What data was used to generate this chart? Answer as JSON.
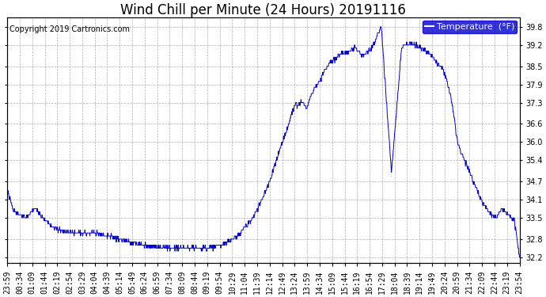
{
  "title": "Wind Chill per Minute (24 Hours) 20191116",
  "copyright": "Copyright 2019 Cartronics.com",
  "legend_label": "Temperature  (°F)",
  "line_color": "#0000cc",
  "background_color": "#ffffff",
  "grid_color": "#999999",
  "ylim": [
    32.0,
    40.1
  ],
  "yticks": [
    32.2,
    32.8,
    33.5,
    34.1,
    34.7,
    35.4,
    36.0,
    36.6,
    37.3,
    37.9,
    38.5,
    39.2,
    39.8
  ],
  "x_labels": [
    "23:59",
    "00:34",
    "01:09",
    "01:44",
    "02:19",
    "02:54",
    "03:29",
    "04:04",
    "04:39",
    "05:14",
    "05:49",
    "06:24",
    "06:59",
    "07:34",
    "08:09",
    "08:44",
    "09:19",
    "09:54",
    "10:29",
    "11:04",
    "11:39",
    "12:14",
    "12:49",
    "13:24",
    "13:59",
    "14:34",
    "15:09",
    "15:44",
    "16:19",
    "16:54",
    "17:29",
    "18:04",
    "18:39",
    "19:14",
    "19:49",
    "20:24",
    "20:59",
    "21:34",
    "22:09",
    "22:44",
    "23:19",
    "23:54"
  ],
  "title_fontsize": 12,
  "copyright_fontsize": 7,
  "tick_fontsize": 7,
  "legend_fontsize": 8,
  "legend_bg_color": "#0000cc",
  "legend_text_color": "#ffffff"
}
